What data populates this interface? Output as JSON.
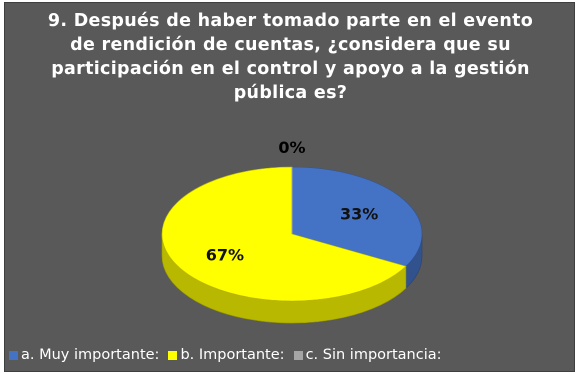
{
  "chart_data": {
    "type": "pie",
    "title_lines": [
      "9. Después de haber tomado parte en el evento",
      "de rendición de cuentas, ¿considera que su",
      "participación en el control y apoyo a la gestión",
      "pública es?"
    ],
    "categories": [
      "a. Muy importante:",
      "b. Importante:",
      "c. Sin importancia:"
    ],
    "values": [
      33,
      67,
      0
    ],
    "data_labels": [
      "33%",
      "67%",
      "0%"
    ],
    "colors": [
      "#4472c4",
      "#ffff00",
      "#a5a5a5"
    ],
    "legend_position": "bottom",
    "style": "3d"
  }
}
